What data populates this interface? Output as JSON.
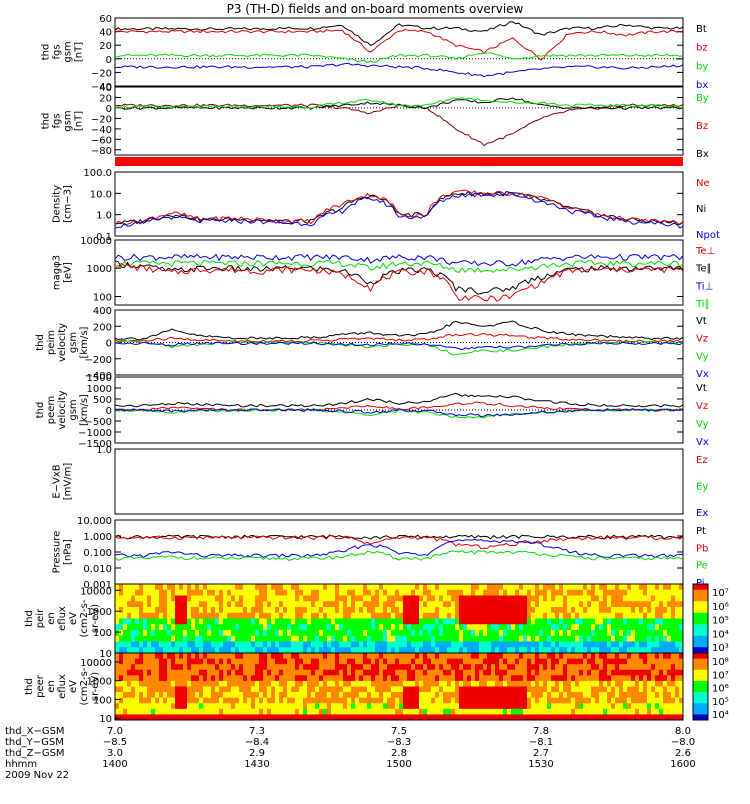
{
  "title": "P3 (TH-D) fields and on-board moments overview",
  "date": "2009 Nov 22",
  "colors": {
    "black": "#000000",
    "red": "#e00000",
    "green": "#00dd00",
    "blue": "#0000dd",
    "darkred": "#800000",
    "bar": "#ff0000"
  },
  "chart_data": [
    {
      "type": "line",
      "ylabel": [
        "thd",
        "fgs",
        "gsm",
        "[nT]"
      ],
      "ylim": [
        -40,
        60
      ],
      "yticks": [
        "60",
        "40",
        "20",
        "0",
        "−20",
        "−40"
      ],
      "legend": [
        {
          "name": "Bt",
          "color": "#000000"
        },
        {
          "name": "bz",
          "color": "#e00000"
        },
        {
          "name": "by",
          "color": "#00dd00"
        },
        {
          "name": "bx",
          "color": "#0000dd"
        }
      ],
      "series": [
        {
          "name": "Bt",
          "color": "#000000",
          "values": [
            44,
            44,
            44,
            44,
            44,
            44,
            45,
            45,
            50,
            20,
            50,
            45,
            45,
            40,
            55,
            35,
            45,
            45,
            50,
            45,
            45
          ]
        },
        {
          "name": "bz",
          "color": "#e00000",
          "values": [
            40,
            40,
            40,
            40,
            40,
            40,
            40,
            40,
            42,
            10,
            42,
            40,
            20,
            10,
            30,
            0,
            38,
            40,
            35,
            40,
            40
          ]
        },
        {
          "name": "by",
          "color": "#00dd00",
          "values": [
            5,
            5,
            5,
            5,
            5,
            5,
            5,
            5,
            0,
            -5,
            5,
            5,
            0,
            10,
            0,
            5,
            5,
            5,
            5,
            5,
            5
          ]
        },
        {
          "name": "bx",
          "color": "#0000dd",
          "values": [
            -12,
            -12,
            -12,
            -12,
            -12,
            -12,
            -12,
            -12,
            -8,
            -10,
            -12,
            -14,
            -20,
            -25,
            -20,
            -15,
            -12,
            -12,
            -14,
            -12,
            -10
          ]
        }
      ]
    },
    {
      "type": "line",
      "ylabel": [
        "thd",
        "fgs",
        "gsm",
        "[nT]"
      ],
      "ylim": [
        -90,
        40
      ],
      "yticks": [
        "40",
        "20",
        "0",
        "−20",
        "−40",
        "−60",
        "−80"
      ],
      "legend": [
        {
          "name": "By",
          "color": "#00dd00"
        },
        {
          "name": "Bz",
          "color": "#e00000"
        },
        {
          "name": "Bx",
          "color": "#000000"
        }
      ],
      "series": [
        {
          "name": "Bz",
          "color": "#800000",
          "values": [
            5,
            5,
            5,
            5,
            5,
            5,
            5,
            5,
            0,
            -10,
            5,
            0,
            -40,
            -70,
            -50,
            -20,
            -5,
            0,
            5,
            5,
            5
          ]
        },
        {
          "name": "Bx",
          "color": "#000000",
          "values": [
            0,
            0,
            0,
            0,
            0,
            0,
            0,
            0,
            5,
            10,
            5,
            0,
            15,
            10,
            20,
            5,
            0,
            0,
            0,
            0,
            0
          ]
        },
        {
          "name": "By",
          "color": "#00dd00",
          "values": [
            2,
            2,
            2,
            2,
            2,
            2,
            2,
            2,
            10,
            15,
            5,
            5,
            20,
            15,
            10,
            10,
            5,
            5,
            5,
            5,
            2
          ]
        }
      ]
    },
    {
      "type": "heatmap",
      "ylabel": [],
      "series": [
        {
          "name": "mode-bar",
          "color": "#ff0000",
          "values": [
            1
          ]
        }
      ]
    },
    {
      "type": "line",
      "ylabel": [
        "Density",
        "[cm−3]"
      ],
      "ylim": [
        0.1,
        100
      ],
      "yscale": "log",
      "yticks": [
        "100.0",
        "10.0",
        "1.0",
        "0.1"
      ],
      "legend": [
        {
          "name": "Ne",
          "color": "#e00000"
        },
        {
          "name": "Ni",
          "color": "#000000"
        },
        {
          "name": "Npot",
          "color": "#0000dd"
        }
      ],
      "series": [
        {
          "name": "Ni",
          "color": "#000000",
          "values": [
            0.4,
            0.5,
            1.0,
            0.6,
            0.6,
            0.6,
            0.5,
            0.5,
            2,
            8,
            1,
            1,
            10,
            10,
            10,
            5,
            2,
            1,
            0.6,
            0.5,
            0.4
          ]
        },
        {
          "name": "Ne",
          "color": "#e00000",
          "values": [
            0.4,
            0.5,
            1.2,
            0.6,
            0.7,
            0.6,
            0.5,
            0.5,
            3,
            9,
            1,
            1,
            12,
            10,
            10,
            6,
            2,
            1,
            0.6,
            0.5,
            0.4
          ]
        },
        {
          "name": "Npot",
          "color": "#0000dd",
          "values": [
            0.3,
            0.4,
            0.8,
            0.5,
            0.5,
            0.5,
            0.4,
            0.4,
            1.5,
            6,
            0.8,
            0.8,
            8,
            9,
            9,
            4,
            1.5,
            0.8,
            0.5,
            0.4,
            0.3
          ]
        }
      ]
    },
    {
      "type": "line",
      "ylabel": [
        "magφ3",
        "[eV]"
      ],
      "ylim": [
        50,
        10000
      ],
      "yscale": "log",
      "yticks": [
        "10000",
        "1000",
        "100"
      ],
      "legend": [
        {
          "name": "Te⊥",
          "color": "#e00000"
        },
        {
          "name": "Te∥",
          "color": "#000000"
        },
        {
          "name": "Ti⊥",
          "color": "#0000dd"
        },
        {
          "name": "Ti∥",
          "color": "#00dd00"
        }
      ],
      "series": [
        {
          "name": "Ti⊥",
          "color": "#0000dd",
          "values": [
            2500,
            2500,
            2500,
            2500,
            2500,
            2500,
            2500,
            2500,
            2500,
            2000,
            2500,
            2500,
            1500,
            1500,
            1500,
            2000,
            2500,
            2500,
            2500,
            2500,
            2500
          ]
        },
        {
          "name": "Ti∥",
          "color": "#00dd00",
          "values": [
            1500,
            1500,
            1500,
            1500,
            1500,
            1500,
            1500,
            1500,
            1500,
            1000,
            1500,
            1500,
            900,
            900,
            900,
            1200,
            1500,
            1500,
            1500,
            1500,
            1500
          ]
        },
        {
          "name": "Te∥",
          "color": "#000000",
          "values": [
            1500,
            1200,
            800,
            1000,
            1000,
            900,
            1000,
            1000,
            800,
            300,
            800,
            900,
            200,
            150,
            200,
            500,
            900,
            1000,
            1000,
            1000,
            1000
          ]
        },
        {
          "name": "Te⊥",
          "color": "#e00000",
          "values": [
            1300,
            1000,
            700,
            900,
            900,
            800,
            900,
            900,
            600,
            200,
            700,
            800,
            100,
            80,
            100,
            300,
            800,
            900,
            900,
            900,
            900
          ]
        }
      ]
    },
    {
      "type": "line",
      "ylabel": [
        "thd",
        "peim",
        "velocity",
        "gsm",
        "[km/s]"
      ],
      "ylim": [
        -400,
        400
      ],
      "yticks": [
        "400",
        "200",
        "0",
        "−200",
        "−400"
      ],
      "legend": [
        {
          "name": "Vt",
          "color": "#000000"
        },
        {
          "name": "Vz",
          "color": "#e00000"
        },
        {
          "name": "Vy",
          "color": "#00dd00"
        },
        {
          "name": "Vx",
          "color": "#0000dd"
        }
      ],
      "series": [
        {
          "name": "Vt",
          "color": "#000000",
          "values": [
            50,
            50,
            150,
            80,
            60,
            50,
            60,
            60,
            100,
            120,
            80,
            100,
            250,
            200,
            250,
            150,
            100,
            80,
            60,
            50,
            50
          ]
        },
        {
          "name": "Vz",
          "color": "#e00000",
          "values": [
            20,
            20,
            50,
            30,
            20,
            20,
            20,
            20,
            40,
            50,
            30,
            40,
            100,
            100,
            80,
            60,
            40,
            30,
            20,
            20,
            20
          ]
        },
        {
          "name": "Vy",
          "color": "#00dd00",
          "values": [
            0,
            0,
            -50,
            -20,
            0,
            0,
            0,
            0,
            -30,
            -50,
            -20,
            -20,
            -150,
            -100,
            -100,
            -60,
            -20,
            0,
            0,
            0,
            0
          ]
        },
        {
          "name": "Vx",
          "color": "#0000dd",
          "values": [
            -10,
            -10,
            -30,
            -10,
            -10,
            -10,
            -10,
            -10,
            -20,
            -30,
            -10,
            -20,
            -80,
            -60,
            -60,
            -40,
            -20,
            -10,
            -10,
            -10,
            -10
          ]
        }
      ]
    },
    {
      "type": "line",
      "ylabel": [
        "thd",
        "peem",
        "velocity",
        "gsm",
        "[km/s]"
      ],
      "ylim": [
        -1500,
        1500
      ],
      "yticks": [
        "1500",
        "1000",
        "500",
        "0",
        "−500",
        "−1000",
        "−1500"
      ],
      "legend": [
        {
          "name": "Vt",
          "color": "#000000"
        },
        {
          "name": "Vz",
          "color": "#e00000"
        },
        {
          "name": "Vy",
          "color": "#00dd00"
        },
        {
          "name": "Vx",
          "color": "#0000dd"
        }
      ],
      "series": [
        {
          "name": "Vt",
          "color": "#000000",
          "values": [
            200,
            200,
            300,
            250,
            200,
            200,
            200,
            200,
            300,
            500,
            300,
            400,
            700,
            600,
            600,
            400,
            300,
            200,
            200,
            200,
            200
          ]
        },
        {
          "name": "Vz",
          "color": "#e00000",
          "values": [
            0,
            0,
            100,
            50,
            0,
            0,
            0,
            0,
            100,
            200,
            50,
            100,
            300,
            300,
            200,
            100,
            50,
            0,
            0,
            0,
            0
          ]
        },
        {
          "name": "Vy",
          "color": "#00dd00",
          "values": [
            0,
            0,
            -100,
            -50,
            0,
            0,
            0,
            0,
            -100,
            -200,
            -50,
            -100,
            -300,
            -300,
            -200,
            -100,
            -50,
            0,
            0,
            0,
            0
          ]
        },
        {
          "name": "Vx",
          "color": "#0000dd",
          "values": [
            0,
            0,
            -50,
            0,
            0,
            0,
            0,
            0,
            -50,
            -100,
            0,
            -50,
            -200,
            -250,
            -200,
            -100,
            -50,
            0,
            0,
            0,
            0
          ]
        }
      ]
    },
    {
      "type": "line",
      "ylabel": [
        "E−VxB",
        "[mV/m]"
      ],
      "ylim": [
        -1,
        1
      ],
      "yticks": [
        "1.0"
      ],
      "legend": [
        {
          "name": "Ez",
          "color": "#e00000"
        },
        {
          "name": "Ey",
          "color": "#00dd00"
        },
        {
          "name": "Ex",
          "color": "#0000dd"
        }
      ],
      "series": []
    },
    {
      "type": "line",
      "ylabel": [
        "Pressure",
        "[nPa]"
      ],
      "ylim": [
        0.001,
        10
      ],
      "yscale": "log",
      "yticks": [
        "10.000",
        "1.000",
        "0.100",
        "0.010",
        "0.001"
      ],
      "legend": [
        {
          "name": "Pt",
          "color": "#000000"
        },
        {
          "name": "Pb",
          "color": "#e00000"
        },
        {
          "name": "Pe",
          "color": "#00dd00"
        },
        {
          "name": "Pi",
          "color": "#0000dd"
        }
      ],
      "series": [
        {
          "name": "Pt",
          "color": "#000000",
          "values": [
            0.9,
            0.9,
            0.9,
            0.9,
            0.9,
            0.9,
            0.9,
            0.9,
            1.0,
            0.8,
            0.9,
            0.9,
            0.9,
            0.9,
            0.9,
            0.9,
            0.9,
            0.9,
            0.9,
            0.9,
            0.9
          ]
        },
        {
          "name": "Pb",
          "color": "#e00000",
          "values": [
            0.8,
            0.8,
            0.8,
            0.8,
            0.8,
            0.8,
            0.8,
            0.8,
            0.9,
            0.3,
            0.8,
            0.8,
            0.3,
            0.2,
            0.3,
            0.5,
            0.7,
            0.8,
            0.8,
            0.8,
            0.8
          ]
        },
        {
          "name": "Pi",
          "color": "#0000dd",
          "values": [
            0.06,
            0.06,
            0.1,
            0.06,
            0.06,
            0.06,
            0.06,
            0.06,
            0.1,
            0.3,
            0.08,
            0.08,
            0.5,
            0.5,
            0.5,
            0.3,
            0.1,
            0.06,
            0.06,
            0.06,
            0.06
          ]
        },
        {
          "name": "Pe",
          "color": "#00dd00",
          "values": [
            0.04,
            0.04,
            0.05,
            0.04,
            0.04,
            0.04,
            0.04,
            0.04,
            0.05,
            0.1,
            0.04,
            0.04,
            0.1,
            0.1,
            0.1,
            0.08,
            0.05,
            0.04,
            0.04,
            0.04,
            0.04
          ]
        }
      ]
    },
    {
      "type": "heatmap",
      "ylabel": [
        "thd",
        "peir",
        "en",
        "eflux",
        "eV",
        "(cm2-s-",
        "sr-eV)"
      ],
      "yticks": [
        "10000",
        "1000",
        "100",
        "10"
      ],
      "ylim": [
        10,
        20000
      ],
      "yscale": "log",
      "colorbar": {
        "labels": [
          "10⁷",
          "10⁶",
          "10⁵",
          "10⁴",
          "10³"
        ]
      }
    },
    {
      "type": "heatmap",
      "ylabel": [
        "thd",
        "peer",
        "en",
        "eflux",
        "eV",
        "(cm2-s-",
        "sr-eV)"
      ],
      "yticks": [
        "10000",
        "1000",
        "100",
        "10"
      ],
      "ylim": [
        8,
        30000
      ],
      "yscale": "log",
      "colorbar": {
        "labels": [
          "10⁸",
          "10⁷",
          "10⁶",
          "10⁵",
          "10⁴"
        ]
      }
    }
  ],
  "x_axis": {
    "rows": [
      {
        "label": "thd_X−GSM",
        "values": [
          "7.0",
          "7.3",
          "7.5",
          "7.8",
          "8.0"
        ]
      },
      {
        "label": "thd_Y−GSM",
        "values": [
          "−8.5",
          "−8.4",
          "−8.3",
          "−8.1",
          "−8.0"
        ]
      },
      {
        "label": "thd_Z−GSM",
        "values": [
          "3.0",
          "2.9",
          "2.8",
          "2.7",
          "2.6"
        ]
      },
      {
        "label": "hhmm",
        "values": [
          "1400",
          "1430",
          "1500",
          "1530",
          "1600"
        ]
      }
    ]
  }
}
